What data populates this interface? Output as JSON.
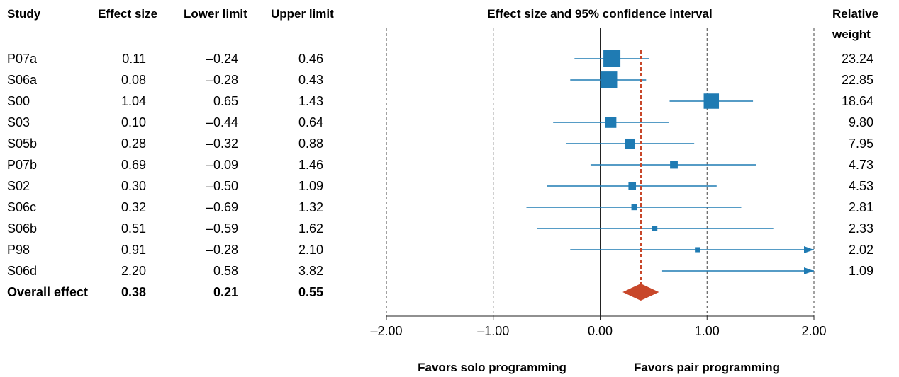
{
  "table": {
    "headers": {
      "study": "Study",
      "effect": "Effect size",
      "lower": "Lower limit",
      "upper": "Upper limit",
      "weight_line1": "Relative",
      "weight_line2": "weight"
    },
    "rows": [
      {
        "study": "P07a",
        "effect": "0.11",
        "lower": "–0.24",
        "upper": "0.46",
        "weight": "23.24"
      },
      {
        "study": "S06a",
        "effect": "0.08",
        "lower": "–0.28",
        "upper": "0.43",
        "weight": "22.85"
      },
      {
        "study": "S00",
        "effect": "1.04",
        "lower": "0.65",
        "upper": "1.43",
        "weight": "18.64"
      },
      {
        "study": "S03",
        "effect": "0.10",
        "lower": "–0.44",
        "upper": "0.64",
        "weight": "9.80"
      },
      {
        "study": "S05b",
        "effect": "0.28",
        "lower": "–0.32",
        "upper": "0.88",
        "weight": "7.95"
      },
      {
        "study": "P07b",
        "effect": "0.69",
        "lower": "–0.09",
        "upper": "1.46",
        "weight": "4.73"
      },
      {
        "study": "S02",
        "effect": "0.30",
        "lower": "–0.50",
        "upper": "1.09",
        "weight": "4.53"
      },
      {
        "study": "S06c",
        "effect": "0.32",
        "lower": "–0.69",
        "upper": "1.32",
        "weight": "2.81"
      },
      {
        "study": "S06b",
        "effect": "0.51",
        "lower": "–0.59",
        "upper": "1.62",
        "weight": "2.33"
      },
      {
        "study": "P98",
        "effect": "0.91",
        "lower": "–0.28",
        "upper": "2.10",
        "weight": "2.02"
      },
      {
        "study": "S06d",
        "effect": "2.20",
        "lower": "0.58",
        "upper": "3.82",
        "weight": "1.09"
      }
    ],
    "overall": {
      "study": "Overall effect",
      "effect": "0.38",
      "lower": "0.21",
      "upper": "0.55"
    }
  },
  "chart_data": {
    "type": "forest",
    "title": "Effect size and 95% confidence interval",
    "xlim": [
      -2,
      2
    ],
    "x_ticks": [
      "–2.00",
      "–1.00",
      "0.00",
      "1.00",
      "2.00"
    ],
    "x_tick_values": [
      -2,
      -1,
      0,
      1,
      2
    ],
    "xlabel_left": "Favors solo programming",
    "xlabel_right": "Favors pair programming",
    "series": [
      {
        "study": "P07a",
        "effect": 0.11,
        "lower": -0.24,
        "upper": 0.46,
        "weight": 23.24
      },
      {
        "study": "S06a",
        "effect": 0.08,
        "lower": -0.28,
        "upper": 0.43,
        "weight": 22.85
      },
      {
        "study": "S00",
        "effect": 1.04,
        "lower": 0.65,
        "upper": 1.43,
        "weight": 18.64
      },
      {
        "study": "S03",
        "effect": 0.1,
        "lower": -0.44,
        "upper": 0.64,
        "weight": 9.8
      },
      {
        "study": "S05b",
        "effect": 0.28,
        "lower": -0.32,
        "upper": 0.88,
        "weight": 7.95
      },
      {
        "study": "P07b",
        "effect": 0.69,
        "lower": -0.09,
        "upper": 1.46,
        "weight": 4.73
      },
      {
        "study": "S02",
        "effect": 0.3,
        "lower": -0.5,
        "upper": 1.09,
        "weight": 4.53
      },
      {
        "study": "S06c",
        "effect": 0.32,
        "lower": -0.69,
        "upper": 1.32,
        "weight": 2.81
      },
      {
        "study": "S06b",
        "effect": 0.51,
        "lower": -0.59,
        "upper": 1.62,
        "weight": 2.33
      },
      {
        "study": "P98",
        "effect": 0.91,
        "lower": -0.28,
        "upper": 2.1,
        "weight": 2.02
      },
      {
        "study": "S06d",
        "effect": 2.2,
        "lower": 0.58,
        "upper": 3.82,
        "weight": 1.09
      }
    ],
    "overall": {
      "effect": 0.38,
      "lower": 0.21,
      "upper": 0.55
    },
    "colors": {
      "study": "#1f7bb3",
      "overall": "#c8472a",
      "axis": "#222222",
      "dashed": "#444444"
    }
  }
}
